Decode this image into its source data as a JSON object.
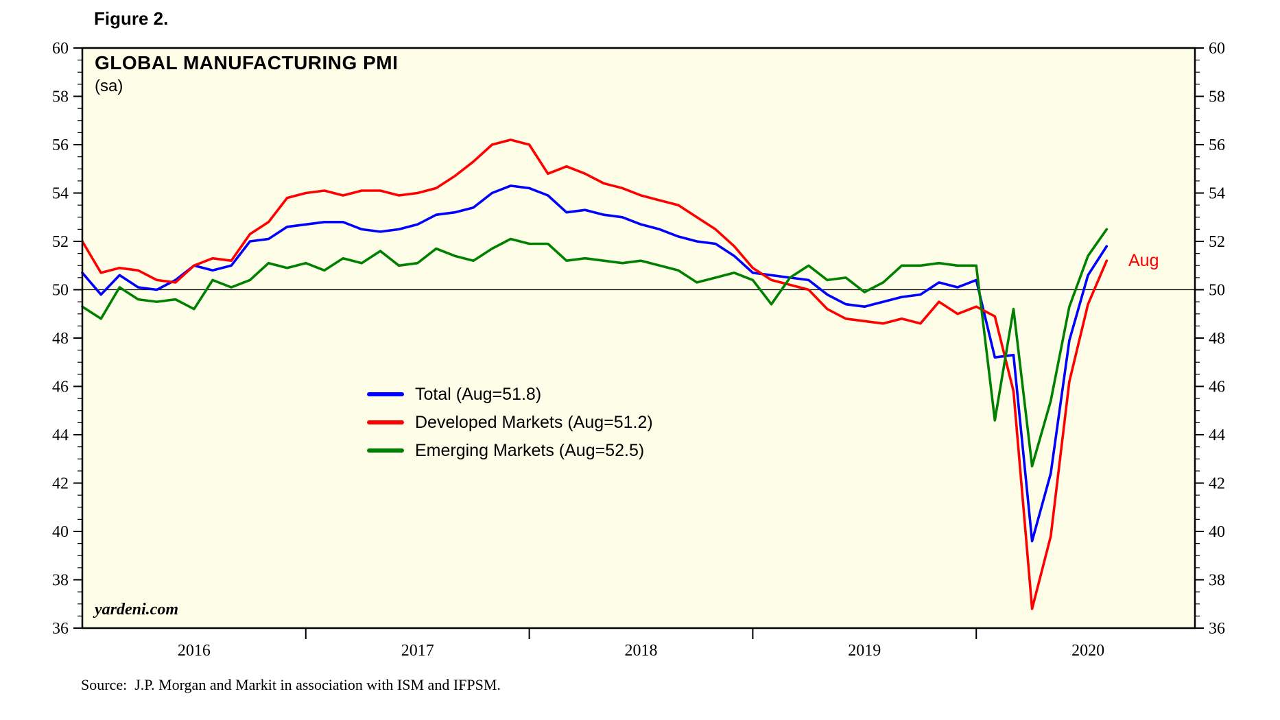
{
  "figure_label": "Figure 2.",
  "source_line": "Source:  J.P. Morgan and Markit in association with ISM and IFPSM.",
  "chart_data": {
    "type": "line",
    "title": "GLOBAL MANUFACTURING PMI",
    "subtitle": "(sa)",
    "watermark": "yardeni.com",
    "plot_bg": "#FEFEE8",
    "frame_color": "#000000",
    "grid": false,
    "reference_line": 50,
    "ylim": [
      36,
      60
    ],
    "ytick_step": 2,
    "yminor_step": 0.5,
    "x_start": "2016-01",
    "x_end": "2020-08",
    "months_count": 56,
    "year_labels": [
      "2016",
      "2017",
      "2018",
      "2019",
      "2020"
    ],
    "legend_position": "inside-center-left",
    "annotation": {
      "text": "Aug",
      "color": "#FF0000"
    },
    "series": [
      {
        "id": "total",
        "name": "Total (Aug=51.8)",
        "color": "#0000FF",
        "values": [
          50.7,
          49.8,
          50.6,
          50.1,
          50.0,
          50.4,
          51.0,
          50.8,
          51.0,
          52.0,
          52.1,
          52.6,
          52.7,
          52.8,
          52.8,
          52.5,
          52.4,
          52.5,
          52.7,
          53.1,
          53.2,
          53.4,
          54.0,
          54.3,
          54.2,
          53.9,
          53.2,
          53.3,
          53.1,
          53.0,
          52.7,
          52.5,
          52.2,
          52.0,
          51.9,
          51.4,
          50.7,
          50.6,
          50.5,
          50.4,
          49.8,
          49.4,
          49.3,
          49.5,
          49.7,
          49.8,
          50.3,
          50.1,
          50.4,
          47.2,
          47.3,
          39.6,
          42.4,
          47.9,
          50.6,
          51.8
        ]
      },
      {
        "id": "developed-markets",
        "name": "Developed Markets (Aug=51.2)",
        "color": "#FF0000",
        "values": [
          52.0,
          50.7,
          50.9,
          50.8,
          50.4,
          50.3,
          51.0,
          51.3,
          51.2,
          52.3,
          52.8,
          53.8,
          54.0,
          54.1,
          53.9,
          54.1,
          54.1,
          53.9,
          54.0,
          54.2,
          54.7,
          55.3,
          56.0,
          56.2,
          56.0,
          54.8,
          55.1,
          54.8,
          54.4,
          54.2,
          53.9,
          53.7,
          53.5,
          53.0,
          52.5,
          51.8,
          50.9,
          50.4,
          50.2,
          50.0,
          49.2,
          48.8,
          48.7,
          48.6,
          48.8,
          48.6,
          49.5,
          49.0,
          49.3,
          48.9,
          45.8,
          36.8,
          39.8,
          46.2,
          49.4,
          51.2
        ]
      },
      {
        "id": "emerging-markets",
        "name": "Emerging Markets (Aug=52.5)",
        "color": "#008000",
        "values": [
          49.3,
          48.8,
          50.1,
          49.6,
          49.5,
          49.6,
          49.2,
          50.4,
          50.1,
          50.4,
          51.1,
          50.9,
          51.1,
          50.8,
          51.3,
          51.1,
          51.6,
          51.0,
          51.1,
          51.7,
          51.4,
          51.2,
          51.7,
          52.1,
          51.9,
          51.9,
          51.2,
          51.3,
          51.2,
          51.1,
          51.2,
          51.0,
          50.8,
          50.3,
          50.5,
          50.7,
          50.4,
          49.4,
          50.5,
          51.0,
          50.4,
          50.5,
          49.9,
          50.3,
          51.0,
          51.0,
          51.1,
          51.0,
          51.0,
          44.6,
          49.2,
          42.7,
          45.4,
          49.3,
          51.4,
          52.5
        ]
      }
    ]
  }
}
